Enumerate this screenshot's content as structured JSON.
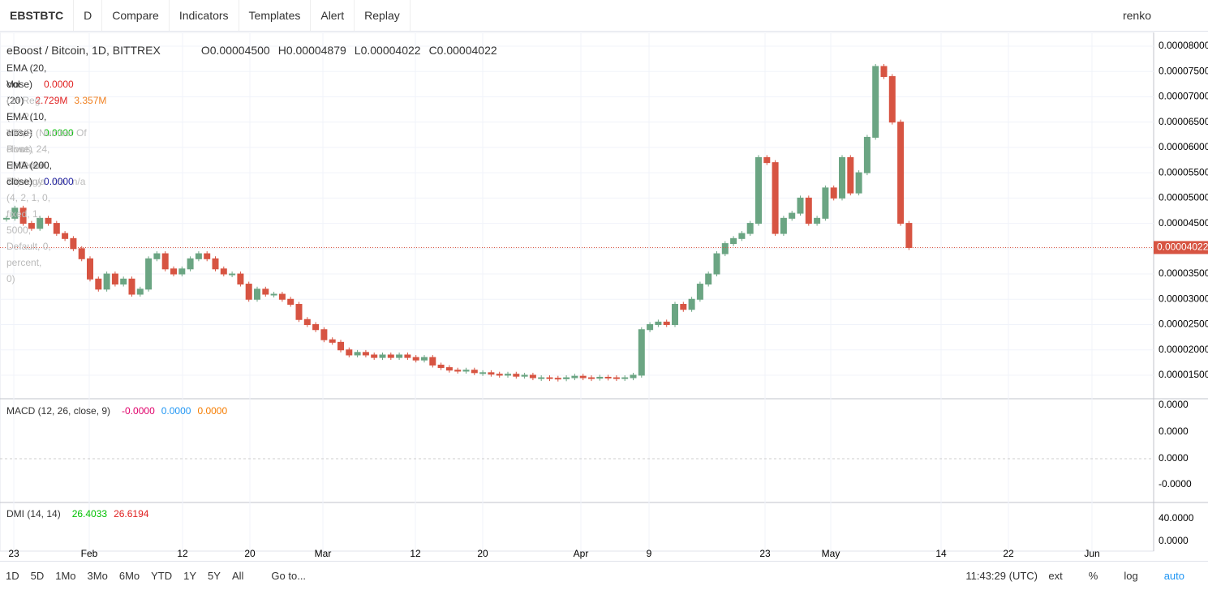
{
  "toolbar": {
    "symbol": "EBSTBTC",
    "interval": "D",
    "items": [
      "Compare",
      "Indicators",
      "Templates",
      "Alert",
      "Replay"
    ],
    "chart_type": "renko"
  },
  "legend": {
    "title": "eBoost / Bitcoin, 1D, BITTREX",
    "ohlc": [
      "O0.00004500",
      "H0.00004879",
      "L0.00004022",
      "C0.00004022"
    ],
    "indicators": [
      {
        "name": "EMA (20, close)",
        "values": [
          "0.0000"
        ],
        "colors": [
          "#e02020"
        ]
      },
      {
        "name": "Vol (20)",
        "values": [
          "2.729M",
          "3.357M"
        ],
        "colors": [
          "#e02020",
          "#f08020"
        ]
      },
      {
        "name": "Lin Reg (2, -2, 100, close)",
        "values": [],
        "colors": [],
        "faded": true
      },
      {
        "name": "EMA (10, close)",
        "values": [
          "0.0000"
        ],
        "colors": [
          "#00c000"
        ]
      },
      {
        "name": "VPVR (Number Of Rows, 24, Up/Down, 70)",
        "values": [
          "n/a",
          "n/a",
          "n/a"
        ],
        "colors": [
          "#bbb",
          "#bbb",
          "#bbb"
        ],
        "faded": true
      },
      {
        "name": "Pivot Reversal Strategy (4, 2, 1, 0, fixed, 1, 5000, Default, 0, percent, 0)",
        "values": [],
        "colors": [],
        "faded": true
      },
      {
        "name": "EMA (200, close)",
        "values": [
          "0.0000"
        ],
        "colors": [
          "#2020a0"
        ]
      }
    ]
  },
  "chart_data": {
    "type": "candlestick",
    "x_labels": [
      "23",
      "Feb",
      "12",
      "20",
      "Mar",
      "12",
      "20",
      "Apr",
      "9",
      "23",
      "May",
      "14",
      "22",
      "Jun"
    ],
    "closes": [
      4.6e-05,
      4.8e-05,
      4.5e-05,
      4.4e-05,
      4.6e-05,
      4.5e-05,
      4.3e-05,
      4.2e-05,
      4e-05,
      3.8e-05,
      3.4e-05,
      3.2e-05,
      3.5e-05,
      3.3e-05,
      3.4e-05,
      3.1e-05,
      3.2e-05,
      3.8e-05,
      3.9e-05,
      3.6e-05,
      3.5e-05,
      3.6e-05,
      3.8e-05,
      3.9e-05,
      3.8e-05,
      3.6e-05,
      3.5e-05,
      3.5e-05,
      3.3e-05,
      3e-05,
      3.2e-05,
      3.1e-05,
      3.1e-05,
      3e-05,
      2.9e-05,
      2.6e-05,
      2.5e-05,
      2.4e-05,
      2.2e-05,
      2.15e-05,
      2e-05,
      1.9e-05,
      1.95e-05,
      1.9e-05,
      1.85e-05,
      1.9e-05,
      1.85e-05,
      1.9e-05,
      1.85e-05,
      1.8e-05,
      1.85e-05,
      1.7e-05,
      1.65e-05,
      1.6e-05,
      1.58e-05,
      1.6e-05,
      1.55e-05,
      1.55e-05,
      1.52e-05,
      1.5e-05,
      1.52e-05,
      1.48e-05,
      1.5e-05,
      1.45e-05,
      1.45e-05,
      1.44e-05,
      1.43e-05,
      1.45e-05,
      1.48e-05,
      1.45e-05,
      1.44e-05,
      1.46e-05,
      1.45e-05,
      1.44e-05,
      1.45e-05,
      1.5e-05,
      2.4e-05,
      2.5e-05,
      2.55e-05,
      2.5e-05,
      2.9e-05,
      2.8e-05,
      3e-05,
      3.3e-05,
      3.5e-05,
      3.9e-05,
      4.1e-05,
      4.2e-05,
      4.3e-05,
      4.5e-05,
      5.8e-05,
      5.7e-05,
      4.3e-05,
      4.6e-05,
      4.7e-05,
      5e-05,
      4.5e-05,
      4.6e-05,
      5.2e-05,
      5e-05,
      5.8e-05,
      5.1e-05,
      5.5e-05,
      6.2e-05,
      7.6e-05,
      7.4e-05,
      6.5e-05,
      4.5e-05,
      4.022e-05
    ],
    "up_color": "#6ba583",
    "down_color": "#d75442",
    "ylim": [
      1.035e-05,
      8.24e-05
    ],
    "yticks": [
      {
        "value": 1.5e-05,
        "label": "0.00001500"
      },
      {
        "value": 2e-05,
        "label": "0.00002000"
      },
      {
        "value": 2.5e-05,
        "label": "0.00002500"
      },
      {
        "value": 3e-05,
        "label": "0.00003000"
      },
      {
        "value": 3.5e-05,
        "label": "0.00003500"
      },
      {
        "value": 4e-05,
        "label": "0.00004000"
      },
      {
        "value": 4.5e-05,
        "label": "0.00004500"
      },
      {
        "value": 5e-05,
        "label": "0.00005000"
      },
      {
        "value": 5.5e-05,
        "label": "0.00005500"
      },
      {
        "value": 6e-05,
        "label": "0.00006000"
      },
      {
        "value": 6.5e-05,
        "label": "0.00006500"
      },
      {
        "value": 7e-05,
        "label": "0.00007000"
      },
      {
        "value": 7.5e-05,
        "label": "0.00007500"
      },
      {
        "value": 8e-05,
        "label": "0.00008000"
      }
    ],
    "last_price": {
      "value": 4.022e-05,
      "label": "0.00004022"
    },
    "grid": true
  },
  "macd": {
    "name": "MACD (12, 26, close, 9)",
    "values": [
      "-0.0000",
      "0.0000",
      "0.0000"
    ],
    "colors": [
      "#e0006a",
      "#2196f3",
      "#f57c00"
    ],
    "axis": [
      "0.0000",
      "0.0000",
      "0.0000",
      "-0.0000"
    ]
  },
  "dmi": {
    "name": "DMI (14, 14)",
    "values": [
      "26.4033",
      "26.6194"
    ],
    "colors": [
      "#00c000",
      "#e02020"
    ],
    "axis": [
      "40.0000",
      "0.0000"
    ]
  },
  "bottom": {
    "ranges": [
      "1D",
      "5D",
      "1Mo",
      "3Mo",
      "6Mo",
      "YTD",
      "1Y",
      "5Y",
      "All"
    ],
    "goto": "Go to...",
    "time": "11:43:29 (UTC)",
    "options": [
      "ext",
      "%",
      "log",
      "auto"
    ]
  }
}
